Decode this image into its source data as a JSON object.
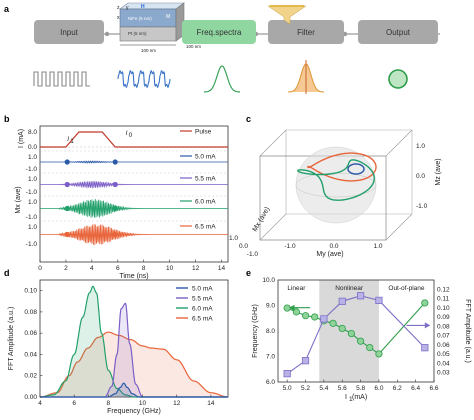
{
  "panel_letters": [
    "a",
    "b",
    "c",
    "d",
    "e"
  ],
  "pipeline": {
    "boxes": [
      "Input",
      "Freq.spectra",
      "Filter",
      "Output"
    ],
    "colors": {
      "input": "#a8a8a8",
      "freq": "#8fd6a0",
      "filter": "#a8a8a8",
      "output": "#a8a8a8"
    },
    "device_labels": [
      "z",
      "y",
      "x",
      "H",
      "NiFe (5 nm)",
      "Pt (5 nm)",
      "M",
      "100 nm",
      "100 nm"
    ]
  },
  "chart_data": [
    {
      "panel": "b",
      "type": "line",
      "xlabel": "Time (ns)",
      "xticks": [
        0,
        2,
        4,
        6,
        8,
        10,
        12,
        14
      ],
      "xlim": [
        0,
        14.5
      ],
      "pulse": {
        "ylabel": "I (mA)",
        "yticks": [
          "8.0",
          "0.0"
        ],
        "legend": "Pulse",
        "color": "#c0392b",
        "points": [
          [
            0,
            0
          ],
          [
            2.0,
            0
          ],
          [
            3.0,
            8
          ],
          [
            4.8,
            8
          ],
          [
            5.8,
            0
          ],
          [
            14.5,
            0
          ]
        ],
        "annotations": [
          "I",
          "1",
          "I",
          "0"
        ]
      },
      "ylabel": "Mx (ave)",
      "series": [
        {
          "name": "5.0 mA",
          "color": "#2b5aa8",
          "amplitude": 0.12,
          "yticks": [
            "1.0",
            "-1.0"
          ]
        },
        {
          "name": "5.5 mA",
          "color": "#7b5fc7",
          "amplitude": 0.4,
          "yticks": [
            "1.0",
            "-1.0"
          ]
        },
        {
          "name": "6.0 mA",
          "color": "#22a06b",
          "amplitude": 1.0,
          "yticks": [
            "1.0",
            "-1.0"
          ]
        },
        {
          "name": "6.5 mA",
          "color": "#e8643a",
          "amplitude": 1.0,
          "yticks": [
            "1.0",
            "-1.0"
          ]
        }
      ]
    },
    {
      "panel": "c",
      "type": "line",
      "xlabel": "Mx (ave)",
      "ylabel": "My (ave)",
      "zlabel": "Mz (ave)",
      "xticks": [
        "-1.0",
        "0.0",
        "1.0"
      ],
      "yticks": [
        "-1.0",
        "0.0",
        "1.0"
      ],
      "zticks": [
        "1.0",
        "0.0",
        "-1.0"
      ]
    },
    {
      "panel": "d",
      "type": "area",
      "xlabel": "Frequency (GHz)",
      "ylabel": "FFT Amplitude (a.u.)",
      "xlim": [
        4,
        15
      ],
      "ylim": [
        0,
        0.11
      ],
      "xticks": [
        4,
        6,
        8,
        10,
        12,
        14
      ],
      "yticks": [
        "0.00",
        "0.02",
        "0.04",
        "0.06",
        "0.08",
        "0.10"
      ],
      "series": [
        {
          "name": "5.0 mA",
          "color": "#2b5aa8",
          "x": [
            4.0,
            8.0,
            8.4,
            8.7,
            8.9,
            9.1,
            9.4,
            9.8,
            15.0
          ],
          "y": [
            0,
            0,
            0.003,
            0.009,
            0.013,
            0.009,
            0.003,
            0,
            0
          ]
        },
        {
          "name": "5.5 mA",
          "color": "#7b5fc7",
          "x": [
            4.0,
            7.8,
            8.2,
            8.5,
            8.75,
            9.0,
            9.25,
            9.6,
            10.0,
            15.0
          ],
          "y": [
            0,
            0,
            0.01,
            0.04,
            0.083,
            0.088,
            0.05,
            0.012,
            0,
            0
          ]
        },
        {
          "name": "6.0 mA",
          "color": "#22a06b",
          "x": [
            4.0,
            4.8,
            5.5,
            6.0,
            6.5,
            6.9,
            7.1,
            7.3,
            7.6,
            8.0,
            8.5,
            9.0,
            9.5,
            15.0
          ],
          "y": [
            0,
            0.002,
            0.015,
            0.04,
            0.075,
            0.098,
            0.104,
            0.098,
            0.06,
            0.025,
            0.008,
            0.002,
            0,
            0
          ]
        },
        {
          "name": "6.5 mA",
          "color": "#e8643a",
          "x": [
            4.0,
            5.0,
            5.7,
            6.2,
            6.8,
            7.4,
            8.0,
            8.6,
            9.3,
            10.0,
            10.5,
            11.2,
            12.0,
            13.0,
            14.0,
            15.0
          ],
          "y": [
            0,
            0.004,
            0.02,
            0.033,
            0.046,
            0.056,
            0.061,
            0.058,
            0.054,
            0.048,
            0.046,
            0.045,
            0.035,
            0.015,
            0.004,
            0
          ]
        }
      ]
    },
    {
      "panel": "e",
      "type": "line",
      "xlabel": "I",
      "xlabel_sub": "1",
      "xlabel_unit": " (mA)",
      "ylabel_left": "Frequency (GHz)",
      "ylabel_right": "FFT Amplitude (a.u.)",
      "xlim": [
        4.9,
        6.6
      ],
      "xticks": [
        "5.0",
        "5.2",
        "5.4",
        "5.6",
        "5.8",
        "6.0",
        "6.2",
        "6.4",
        "6.6"
      ],
      "ylim_left": [
        6.0,
        10.0
      ],
      "yticks_left": [
        "6.0",
        "7.0",
        "8.0",
        "9.0",
        "10.0"
      ],
      "ylim_right": [
        0.02,
        0.13
      ],
      "yticks_right": [
        "0.03",
        "0.04",
        "0.05",
        "0.06",
        "0.07",
        "0.08",
        "0.09",
        "0.10",
        "0.11",
        "0.12"
      ],
      "regions": [
        {
          "label": "Linear"
        },
        {
          "label": "Nonlinear",
          "from": 5.35,
          "to": 6.0,
          "color": "#d9d9d9"
        },
        {
          "label": "Out-of-plane"
        }
      ],
      "series": [
        {
          "name": "Frequency",
          "axis": "left",
          "color": "#2e9e4a",
          "marker": "circle",
          "x": [
            5.0,
            5.1,
            5.2,
            5.3,
            5.4,
            5.5,
            5.6,
            5.7,
            5.8,
            5.9,
            6.0,
            6.5
          ],
          "y": [
            8.9,
            8.75,
            8.6,
            8.55,
            8.4,
            8.3,
            8.1,
            7.9,
            7.6,
            7.35,
            7.1,
            9.1
          ]
        },
        {
          "name": "FFT Amplitude",
          "axis": "right",
          "color": "#7b6fc7",
          "marker": "square",
          "x": [
            5.0,
            5.2,
            5.4,
            5.6,
            5.8,
            6.0,
            6.5
          ],
          "y": [
            0.029,
            0.043,
            0.088,
            0.107,
            0.113,
            0.108,
            0.057
          ]
        }
      ]
    }
  ]
}
